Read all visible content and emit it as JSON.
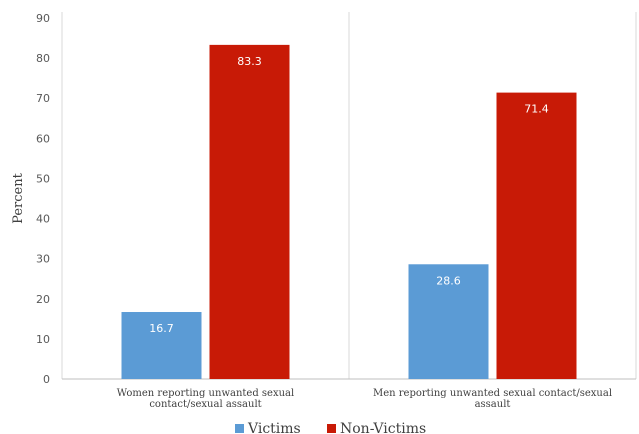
{
  "chart_data": {
    "type": "bar",
    "categories": [
      [
        "Women reporting unwanted sexual",
        "contact/sexual assault"
      ],
      [
        "Men reporting unwanted sexual contact/sexual",
        "assault"
      ]
    ],
    "series": [
      {
        "name": "Victims",
        "color": "#5b9bd5",
        "values": [
          16.7,
          28.6
        ]
      },
      {
        "name": "Non-Victims",
        "color": "#c81a06",
        "values": [
          83.3,
          71.4
        ]
      }
    ],
    "ylabel": "Percent",
    "ylim": [
      0,
      90
    ],
    "yticks": [
      0,
      10,
      20,
      30,
      40,
      50,
      60,
      70,
      80,
      90
    ],
    "grid": false,
    "legend_position": "bottom"
  }
}
